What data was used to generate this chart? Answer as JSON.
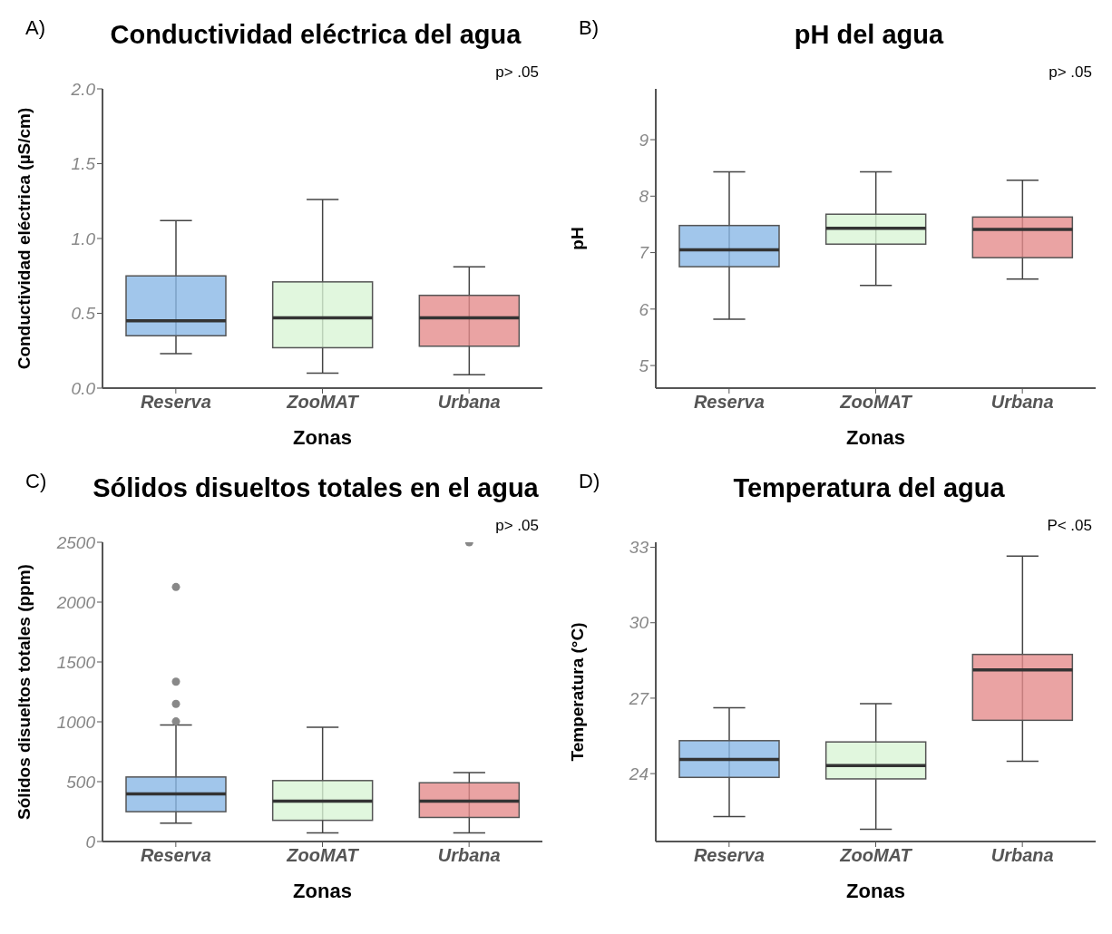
{
  "chart_data": [
    {
      "type": "box",
      "title": "Conductividad eléctrica del agua",
      "xlabel": "Zonas",
      "ylabel": "Conductividad eléctrica (µS/cm)",
      "annotations": [
        "A)",
        "p> .05"
      ],
      "categories": [
        "Reserva",
        "ZooMAT",
        "Urbana"
      ],
      "colors": [
        "#8ab8e6",
        "#d9f5d6",
        "#e58c8c"
      ],
      "ylim": [
        0,
        2.0
      ],
      "yticks": [
        {
          "value": 0,
          "label": "0.0"
        },
        {
          "value": 0.5,
          "label": "0.5"
        },
        {
          "value": 1,
          "label": "1.0"
        },
        {
          "value": 1.5,
          "label": "1.5"
        },
        {
          "value": 2,
          "label": "2.0"
        }
      ],
      "boxes": [
        {
          "low": 0.23,
          "q1": 0.35,
          "median": 0.45,
          "q3": 0.75,
          "high": 1.12
        },
        {
          "low": 0.1,
          "q1": 0.27,
          "median": 0.47,
          "q3": 0.71,
          "high": 1.26
        },
        {
          "low": 0.09,
          "q1": 0.28,
          "median": 0.47,
          "q3": 0.62,
          "high": 0.81
        }
      ]
    },
    {
      "type": "box",
      "title": "pH del agua",
      "xlabel": "Zonas",
      "ylabel": "pH",
      "annotations": [
        "B)",
        "p> .05"
      ],
      "categories": [
        "Reserva",
        "ZooMAT",
        "Urbana"
      ],
      "colors": [
        "#8ab8e6",
        "#d9f5d6",
        "#e58c8c"
      ],
      "ylim": [
        4.6,
        9.9
      ],
      "yticks": [
        5,
        6,
        7,
        8,
        9
      ],
      "boxes": [
        {
          "low": 5.82,
          "q1": 6.75,
          "median": 7.05,
          "q3": 7.48,
          "high": 8.43
        },
        {
          "low": 6.42,
          "q1": 7.15,
          "median": 7.43,
          "q3": 7.68,
          "high": 8.43
        },
        {
          "low": 6.53,
          "q1": 6.91,
          "median": 7.41,
          "q3": 7.63,
          "high": 8.28
        }
      ]
    },
    {
      "type": "box",
      "title": "Sólidos disueltos totales en el agua",
      "xlabel": "Zonas",
      "ylabel": "Sólidos disueltos totales (ppm)",
      "annotations": [
        "C)",
        "p> .05"
      ],
      "categories": [
        "Reserva",
        "ZooMAT",
        "Urbana"
      ],
      "colors": [
        "#8ab8e6",
        "#d9f5d6",
        "#e58c8c"
      ],
      "ylim": [
        0,
        2500
      ],
      "yticks": [
        0,
        500,
        1000,
        1500,
        2000,
        2500
      ],
      "boxes": [
        {
          "low": 153,
          "q1": 249,
          "median": 398,
          "q3": 539,
          "high": 973,
          "outliers": [
            1003,
            1150,
            1335,
            2126
          ]
        },
        {
          "low": 72,
          "q1": 177,
          "median": 338,
          "q3": 509,
          "high": 955
        },
        {
          "low": 72,
          "q1": 201,
          "median": 338,
          "q3": 491,
          "high": 575,
          "outliers": [
            2500
          ]
        }
      ]
    },
    {
      "type": "box",
      "title": "Temperatura del agua",
      "xlabel": "Zonas",
      "ylabel": "Temperatura (°C)",
      "annotations": [
        "D)",
        "P< .05"
      ],
      "categories": [
        "Reserva",
        "ZooMAT",
        "Urbana"
      ],
      "colors": [
        "#8ab8e6",
        "#d9f5d6",
        "#e58c8c"
      ],
      "ylim": [
        21.3,
        33.2
      ],
      "yticks": [
        24,
        27,
        30,
        33
      ],
      "boxes": [
        {
          "low": 22.29,
          "q1": 23.85,
          "median": 24.56,
          "q3": 25.31,
          "high": 26.62
        },
        {
          "low": 21.79,
          "q1": 23.79,
          "median": 24.32,
          "q3": 25.26,
          "high": 26.78
        },
        {
          "low": 24.49,
          "q1": 26.12,
          "median": 28.12,
          "q3": 28.74,
          "high": 32.65
        }
      ]
    }
  ]
}
